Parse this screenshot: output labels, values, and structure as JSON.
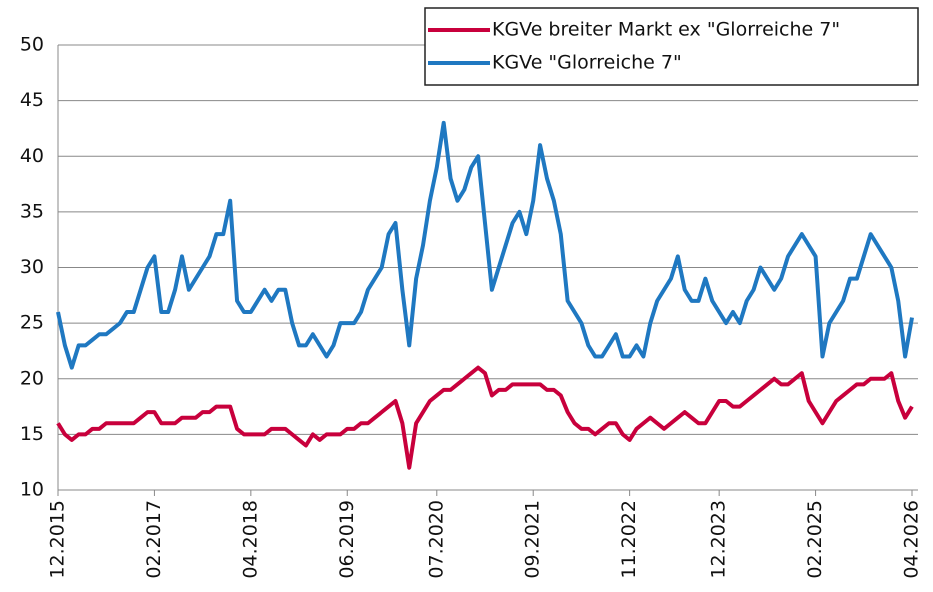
{
  "chart_data": {
    "type": "line",
    "x": [
      "12.2015",
      "01.2016",
      "02.2016",
      "03.2016",
      "04.2016",
      "05.2016",
      "06.2016",
      "07.2016",
      "08.2016",
      "09.2016",
      "10.2016",
      "11.2016",
      "12.2016",
      "01.2017",
      "02.2017",
      "03.2017",
      "04.2017",
      "05.2017",
      "06.2017",
      "07.2017",
      "08.2017",
      "09.2017",
      "10.2017",
      "11.2017",
      "12.2017",
      "01.2018",
      "02.2018",
      "03.2018",
      "04.2018",
      "05.2018",
      "06.2018",
      "07.2018",
      "08.2018",
      "09.2018",
      "10.2018",
      "11.2018",
      "12.2018",
      "01.2019",
      "02.2019",
      "03.2019",
      "04.2019",
      "05.2019",
      "06.2019",
      "07.2019",
      "08.2019",
      "09.2019",
      "10.2019",
      "11.2019",
      "12.2019",
      "01.2020",
      "02.2020",
      "03.2020",
      "04.2020",
      "05.2020",
      "06.2020",
      "07.2020",
      "08.2020",
      "09.2020",
      "10.2020",
      "11.2020",
      "12.2020",
      "01.2021",
      "02.2021",
      "03.2021",
      "04.2021",
      "05.2021",
      "06.2021",
      "07.2021",
      "08.2021",
      "09.2021",
      "10.2021",
      "11.2021",
      "12.2021",
      "01.2022",
      "02.2022",
      "03.2022",
      "04.2022",
      "05.2022",
      "06.2022",
      "07.2022",
      "08.2022",
      "09.2022",
      "10.2022",
      "11.2022",
      "12.2022",
      "01.2023",
      "02.2023",
      "03.2023",
      "04.2023",
      "05.2023",
      "06.2023",
      "07.2023",
      "08.2023",
      "09.2023",
      "10.2023",
      "11.2023",
      "12.2023",
      "01.2024",
      "02.2024",
      "03.2024",
      "04.2024",
      "05.2024",
      "06.2024",
      "07.2024",
      "08.2024",
      "09.2024",
      "10.2024",
      "11.2024",
      "12.2024",
      "01.2025",
      "02.2025",
      "03.2025",
      "04.2025",
      "05.2025",
      "06.2025",
      "07.2025",
      "08.2025",
      "09.2025",
      "10.2025",
      "11.2025",
      "12.2025",
      "01.2026",
      "02.2026",
      "03.2026",
      "04.2026"
    ],
    "series": [
      {
        "name": "KGVe breiter Markt ex \"Glorreiche 7\"",
        "color": "#c8003c",
        "values": [
          16,
          15,
          14.5,
          15,
          15,
          15.5,
          15.5,
          16,
          16,
          16,
          16,
          16,
          16.5,
          17,
          17,
          16,
          16,
          16,
          16.5,
          16.5,
          16.5,
          17,
          17,
          17.5,
          17.5,
          17.5,
          15.5,
          15,
          15,
          15,
          15,
          15.5,
          15.5,
          15.5,
          15,
          14.5,
          14,
          15,
          14.5,
          15,
          15,
          15,
          15.5,
          15.5,
          16,
          16,
          16.5,
          17,
          17.5,
          18,
          16,
          12,
          16,
          17,
          18,
          18.5,
          19,
          19,
          19.5,
          20,
          20.5,
          21,
          20.5,
          18.5,
          19,
          19,
          19.5,
          19.5,
          19.5,
          19.5,
          19.5,
          19,
          19,
          18.5,
          17,
          16,
          15.5,
          15.5,
          15,
          15.5,
          16,
          16,
          15,
          14.5,
          15.5,
          16,
          16.5,
          16,
          15.5,
          16,
          16.5,
          17,
          16.5,
          16,
          16,
          17,
          18,
          18,
          17.5,
          17.5,
          18,
          18.5,
          19,
          19.5,
          20,
          19.5,
          19.5,
          20,
          20.5,
          18,
          17,
          16,
          17,
          18,
          18.5,
          19,
          19.5,
          19.5,
          20,
          20,
          20,
          20.5,
          18,
          16.5,
          17.5
        ]
      },
      {
        "name": "KGVe \"Glorreiche 7\"",
        "color": "#1f78c1",
        "values": [
          26,
          23,
          21,
          23,
          23,
          23.5,
          24,
          24,
          24.5,
          25,
          26,
          26,
          28,
          30,
          31,
          26,
          26,
          28,
          31,
          28,
          29,
          30,
          31,
          33,
          33,
          36,
          27,
          26,
          26,
          27,
          28,
          27,
          28,
          28,
          25,
          23,
          23,
          24,
          23,
          22,
          23,
          25,
          25,
          25,
          26,
          28,
          29,
          30,
          33,
          34,
          28,
          23,
          29,
          32,
          36,
          39,
          43,
          38,
          36,
          37,
          39,
          40,
          34,
          28,
          30,
          32,
          34,
          35,
          33,
          36,
          41,
          38,
          36,
          33,
          27,
          26,
          25,
          23,
          22,
          22,
          23,
          24,
          22,
          22,
          23,
          22,
          25,
          27,
          28,
          29,
          31,
          28,
          27,
          27,
          29,
          27,
          26,
          25,
          26,
          25,
          27,
          28,
          30,
          29,
          28,
          29,
          31,
          32,
          33,
          32,
          31,
          22,
          25,
          26,
          27,
          29,
          29,
          31,
          33,
          32,
          31,
          30,
          27,
          22,
          25.5
        ]
      }
    ],
    "xticks": [
      "12.2015",
      "02.2017",
      "04.2018",
      "06.2019",
      "07.2020",
      "09.2021",
      "11.2022",
      "12.2023",
      "02.2025",
      "04.2026"
    ],
    "ylim": [
      10,
      50
    ],
    "yticks": [
      10,
      15,
      20,
      25,
      30,
      35,
      40,
      45,
      50
    ],
    "grid": true,
    "legend": "upper right"
  }
}
